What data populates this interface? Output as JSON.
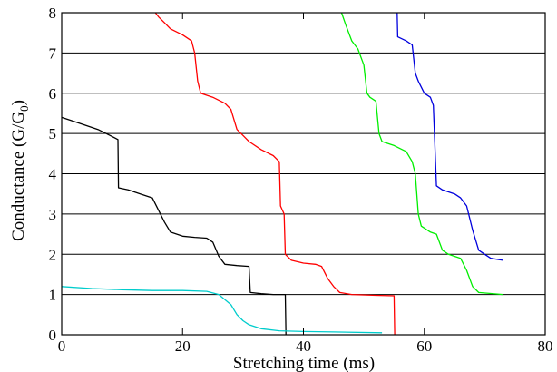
{
  "chart_data": {
    "type": "line",
    "title": "",
    "xlabel": "Stretching time (ms)",
    "ylabel": {
      "main": "Conductance (G/G",
      "sub": "0",
      "end": ")"
    },
    "xlim": [
      0,
      80
    ],
    "ylim": [
      0,
      8
    ],
    "xticks": [
      0,
      20,
      40,
      60,
      80
    ],
    "yticks": [
      0,
      1,
      2,
      3,
      4,
      5,
      6,
      7,
      8
    ],
    "grid": "horizontal",
    "legend": "none",
    "series": [
      {
        "color": "#000000",
        "points": [
          [
            0,
            5.4
          ],
          [
            2,
            5.3
          ],
          [
            4,
            5.2
          ],
          [
            6,
            5.1
          ],
          [
            8,
            4.95
          ],
          [
            9.3,
            4.85
          ],
          [
            9.4,
            3.65
          ],
          [
            11,
            3.6
          ],
          [
            13,
            3.5
          ],
          [
            15,
            3.4
          ],
          [
            16,
            3.1
          ],
          [
            17,
            2.8
          ],
          [
            18,
            2.55
          ],
          [
            20,
            2.45
          ],
          [
            22,
            2.42
          ],
          [
            24,
            2.4
          ],
          [
            25,
            2.3
          ],
          [
            26,
            1.95
          ],
          [
            27,
            1.75
          ],
          [
            29,
            1.72
          ],
          [
            31,
            1.7
          ],
          [
            31.2,
            1.05
          ],
          [
            33,
            1.02
          ],
          [
            35,
            1.0
          ],
          [
            37,
            1.0
          ],
          [
            37.1,
            0.0
          ]
        ]
      },
      {
        "color": "#00cccc",
        "points": [
          [
            0,
            1.2
          ],
          [
            5,
            1.15
          ],
          [
            10,
            1.12
          ],
          [
            15,
            1.1
          ],
          [
            20,
            1.1
          ],
          [
            24,
            1.08
          ],
          [
            26,
            1.0
          ],
          [
            28,
            0.75
          ],
          [
            29,
            0.5
          ],
          [
            30,
            0.35
          ],
          [
            31,
            0.25
          ],
          [
            33,
            0.15
          ],
          [
            36,
            0.1
          ],
          [
            40,
            0.08
          ],
          [
            45,
            0.07
          ],
          [
            53,
            0.05
          ]
        ]
      },
      {
        "color": "#ff0000",
        "points": [
          [
            15.5,
            8.0
          ],
          [
            16,
            7.9
          ],
          [
            17,
            7.75
          ],
          [
            18,
            7.6
          ],
          [
            20,
            7.45
          ],
          [
            21.5,
            7.3
          ],
          [
            22,
            7.0
          ],
          [
            22.5,
            6.3
          ],
          [
            23,
            6.0
          ],
          [
            25,
            5.9
          ],
          [
            27,
            5.75
          ],
          [
            28,
            5.6
          ],
          [
            29,
            5.1
          ],
          [
            30,
            4.95
          ],
          [
            31,
            4.8
          ],
          [
            33,
            4.6
          ],
          [
            35,
            4.45
          ],
          [
            36,
            4.3
          ],
          [
            36.2,
            3.2
          ],
          [
            36.8,
            3.0
          ],
          [
            37,
            2.0
          ],
          [
            38,
            1.85
          ],
          [
            40,
            1.78
          ],
          [
            42,
            1.75
          ],
          [
            43,
            1.7
          ],
          [
            44,
            1.4
          ],
          [
            45,
            1.2
          ],
          [
            46,
            1.05
          ],
          [
            48,
            1.0
          ],
          [
            52,
            0.98
          ],
          [
            55,
            0.97
          ],
          [
            55.1,
            0.0
          ]
        ]
      },
      {
        "color": "#00ee00",
        "points": [
          [
            46.3,
            8.0
          ],
          [
            47,
            7.7
          ],
          [
            48,
            7.3
          ],
          [
            49,
            7.1
          ],
          [
            50,
            6.7
          ],
          [
            50.5,
            6.0
          ],
          [
            51,
            5.9
          ],
          [
            52,
            5.8
          ],
          [
            52.5,
            5.0
          ],
          [
            53,
            4.8
          ],
          [
            55,
            4.7
          ],
          [
            57,
            4.55
          ],
          [
            58,
            4.3
          ],
          [
            58.5,
            4.0
          ],
          [
            59,
            3.0
          ],
          [
            59.5,
            2.7
          ],
          [
            61,
            2.55
          ],
          [
            62,
            2.5
          ],
          [
            63,
            2.1
          ],
          [
            64,
            2.0
          ],
          [
            66,
            1.9
          ],
          [
            67,
            1.6
          ],
          [
            68,
            1.2
          ],
          [
            69,
            1.05
          ],
          [
            73,
            1.0
          ]
        ]
      },
      {
        "color": "#0000dd",
        "points": [
          [
            55.5,
            8.0
          ],
          [
            55.6,
            7.4
          ],
          [
            57,
            7.3
          ],
          [
            58,
            7.2
          ],
          [
            58.5,
            6.5
          ],
          [
            59,
            6.3
          ],
          [
            60,
            6.0
          ],
          [
            61,
            5.9
          ],
          [
            61.5,
            5.7
          ],
          [
            62,
            3.7
          ],
          [
            63,
            3.6
          ],
          [
            64,
            3.55
          ],
          [
            65,
            3.5
          ],
          [
            66,
            3.4
          ],
          [
            67,
            3.2
          ],
          [
            68,
            2.6
          ],
          [
            69,
            2.1
          ],
          [
            70,
            2.0
          ],
          [
            71,
            1.9
          ],
          [
            73,
            1.85
          ]
        ]
      }
    ]
  }
}
